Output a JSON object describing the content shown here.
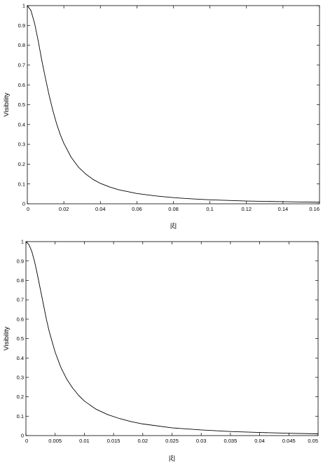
{
  "chart_data": [
    {
      "type": "line",
      "title": "",
      "xlabel": "|ξ|",
      "ylabel": "Visibility",
      "xlim": [
        0,
        0.16
      ],
      "ylim": [
        0,
        1
      ],
      "xticks": [
        0,
        0.02,
        0.04,
        0.06,
        0.08,
        0.1,
        0.12,
        0.14,
        0.16
      ],
      "xtick_labels": [
        "0",
        "0.02",
        "0.04",
        "0.06",
        "0.08",
        "0.1",
        "0.12",
        "0.14",
        "0.16"
      ],
      "yticks": [
        0,
        0.1,
        0.2,
        0.3,
        0.4,
        0.5,
        0.6,
        0.7,
        0.8,
        0.9,
        1
      ],
      "ytick_labels": [
        "0",
        "0.1",
        "0.2",
        "0.3",
        "0.4",
        "0.5",
        "0.6",
        "0.7",
        "0.8",
        "0.9",
        "1"
      ],
      "grid": false,
      "series": [
        {
          "color": "#000000",
          "x": [
            0,
            0.002,
            0.004,
            0.006,
            0.008,
            0.01,
            0.012,
            0.014,
            0.016,
            0.018,
            0.02,
            0.024,
            0.028,
            0.032,
            0.036,
            0.04,
            0.045,
            0.05,
            0.06,
            0.07,
            0.08,
            0.09,
            0.1,
            0.11,
            0.12,
            0.13,
            0.14,
            0.15,
            0.16
          ],
          "y": [
            1.0,
            0.975,
            0.91,
            0.82,
            0.72,
            0.63,
            0.545,
            0.47,
            0.405,
            0.35,
            0.305,
            0.235,
            0.185,
            0.15,
            0.123,
            0.103,
            0.085,
            0.071,
            0.052,
            0.04,
            0.031,
            0.025,
            0.02,
            0.017,
            0.014,
            0.012,
            0.011,
            0.009,
            0.008
          ]
        }
      ]
    },
    {
      "type": "line",
      "title": "",
      "xlabel": "|ξ|",
      "ylabel": "Visibility",
      "xlim": [
        0,
        0.05
      ],
      "ylim": [
        0,
        1
      ],
      "xticks": [
        0,
        0.005,
        0.01,
        0.015,
        0.02,
        0.025,
        0.03,
        0.035,
        0.04,
        0.045,
        0.05
      ],
      "xtick_labels": [
        "0",
        "0.005",
        "0.01",
        "0.015",
        "0.02",
        "0.025",
        "0.03",
        "0.035",
        "0.04",
        "0.045",
        "0.05"
      ],
      "yticks": [
        0,
        0.1,
        0.2,
        0.3,
        0.4,
        0.5,
        0.6,
        0.7,
        0.8,
        0.9,
        1
      ],
      "ytick_labels": [
        "0",
        "0.1",
        "0.2",
        "0.3",
        "0.4",
        "0.5",
        "0.6",
        "0.7",
        "0.8",
        "0.9",
        "1"
      ],
      "grid": false,
      "series": [
        {
          "color": "#000000",
          "x": [
            0,
            0.0005,
            0.001,
            0.0015,
            0.002,
            0.0025,
            0.003,
            0.0035,
            0.004,
            0.005,
            0.006,
            0.007,
            0.008,
            0.009,
            0.01,
            0.012,
            0.014,
            0.016,
            0.018,
            0.02,
            0.025,
            0.03,
            0.035,
            0.04,
            0.045,
            0.05
          ],
          "y": [
            1.0,
            0.985,
            0.95,
            0.895,
            0.825,
            0.75,
            0.675,
            0.6,
            0.535,
            0.43,
            0.35,
            0.29,
            0.245,
            0.208,
            0.178,
            0.136,
            0.108,
            0.088,
            0.072,
            0.06,
            0.04,
            0.029,
            0.021,
            0.016,
            0.012,
            0.009
          ]
        }
      ]
    }
  ]
}
